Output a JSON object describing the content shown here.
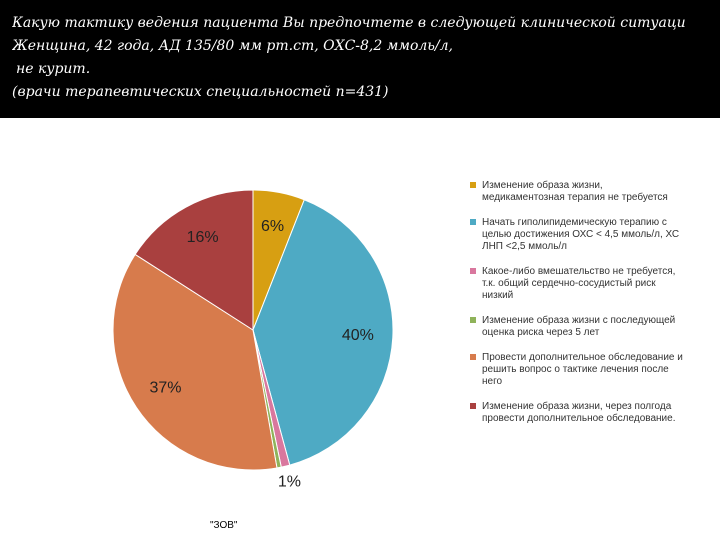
{
  "chart_data": {
    "type": "pie",
    "title": "Какую тактику ведения пациента Вы предпочтете в следующей клинической ситуаци",
    "subtitle": [
      "Женщина, 42 года, АД 135/80 мм рт.ст, ОХС-8,2 ммоль/л,",
      "не курит.",
      "(врачи терапевтических специальностей n=431)"
    ],
    "footnote": "\"ЗОВ\"",
    "categories": [
      "Изменение образа жизни, медикаментозная терапия не требуется",
      "Начать гиполипидемическую терапию с целью достижения ОХС < 4,5 ммоль/л, ХС ЛНП <2,5 ммоль/л",
      "Какое-либо вмешательство не требуется, т.к. общий сердечно-сосудистый риск низкий",
      "Изменение образа жизни с последующей оценка риска через 5 лет",
      "Провести дополнительное обследование и решить вопрос о тактике лечения после него",
      "Изменение образа жизни, через полгода провести дополнительное обследование."
    ],
    "values": [
      6,
      40,
      1,
      0.5,
      37,
      16
    ],
    "value_labels": [
      "6%",
      "40%",
      "1%",
      null,
      "37%",
      "16%"
    ],
    "colors": [
      "#d79f12",
      "#4eaac4",
      "#d9779e",
      "#8fb35a",
      "#d77b4c",
      "#a9403f"
    ],
    "legend": "right"
  }
}
